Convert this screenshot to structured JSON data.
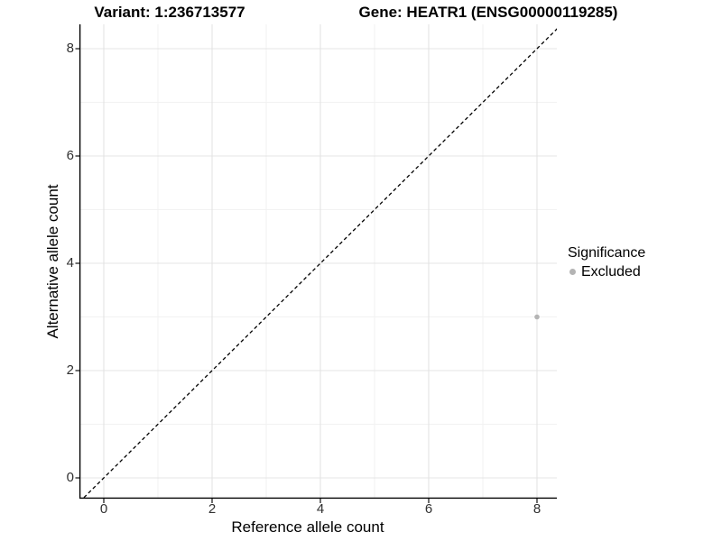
{
  "header": {
    "variant_title": "Variant: 1:236713577",
    "gene_title": "Gene: HEATR1 (ENSG00000119285)"
  },
  "axes": {
    "x": {
      "label": "Reference allele count",
      "ticks": [
        "0",
        "2",
        "4",
        "6",
        "8"
      ]
    },
    "y": {
      "label": "Alternative allele count",
      "ticks": [
        "8",
        "6",
        "4",
        "2",
        "0"
      ]
    }
  },
  "legend": {
    "title": "Significance",
    "items": [
      {
        "label": "Excluded",
        "color": "#b4b4b4"
      }
    ]
  },
  "colors": {
    "grid_major": "#e4e4e4",
    "grid_minor": "#f2f2f2",
    "axis_line": "#000000",
    "tick_mark": "#333333",
    "identity_line": "#000000",
    "point": "#b4b4b4",
    "background": "#ffffff"
  },
  "chart_data": {
    "type": "scatter",
    "title": "Variant: 1:236713577   Gene: HEATR1 (ENSG00000119285)",
    "xlabel": "Reference allele count",
    "ylabel": "Alternative allele count",
    "xlim": [
      -0.45,
      8.45
    ],
    "ylim": [
      -0.45,
      8.45
    ],
    "x_ticks": [
      0,
      2,
      4,
      6,
      8
    ],
    "y_ticks": [
      0,
      2,
      4,
      6,
      8
    ],
    "minor_x": [
      1,
      3,
      5,
      7
    ],
    "minor_y": [
      1,
      3,
      5,
      7
    ],
    "grid": "major+minor",
    "legend_position": "right",
    "series": [
      {
        "name": "Excluded",
        "color": "#b4b4b4",
        "points": [
          [
            8,
            3
          ]
        ]
      }
    ],
    "reference_line": {
      "kind": "identity y=x",
      "style": "dashed",
      "color": "#000000"
    }
  }
}
